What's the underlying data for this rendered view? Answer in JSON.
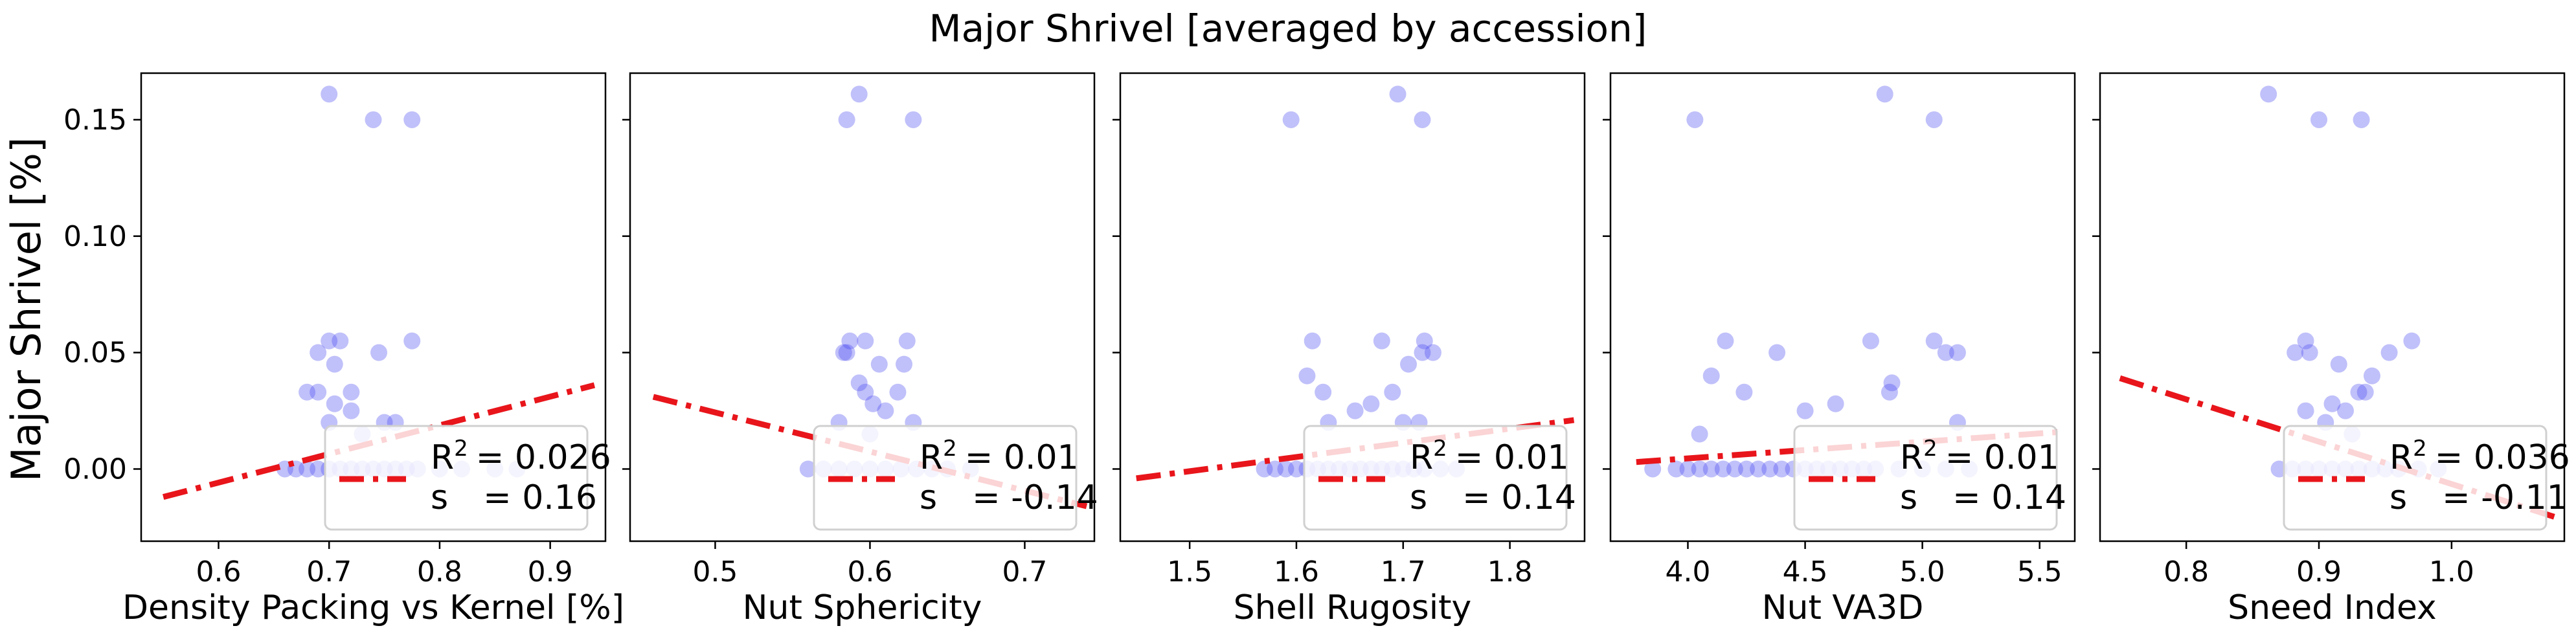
{
  "figure": {
    "title": "Major Shrivel [averaged by accession]",
    "ylabel": "Major Shrivel [%]"
  },
  "colors": {
    "points": "#4a4af0",
    "points_light": "#dcdcfb",
    "fit_line": "#e8151b",
    "axes": "#000000"
  },
  "chart_data": [
    {
      "type": "scatter",
      "xlabel": "Density Packing vs Kernel [%]",
      "ylabel": "Major Shrivel [%]",
      "xlim": [
        0.53,
        0.95
      ],
      "ylim": [
        -0.031,
        0.17
      ],
      "xticks": [
        0.6,
        0.7,
        0.8,
        0.9
      ],
      "xtick_labels": [
        "0.6",
        "0.7",
        "0.8",
        "0.9"
      ],
      "yticks": [
        0.0,
        0.05,
        0.1,
        0.15
      ],
      "ytick_labels": [
        "0.00",
        "0.05",
        "0.10",
        "0.15"
      ],
      "points": [
        {
          "x": 0.7,
          "y": 0.161
        },
        {
          "x": 0.74,
          "y": 0.15
        },
        {
          "x": 0.775,
          "y": 0.15
        },
        {
          "x": 0.69,
          "y": 0.05
        },
        {
          "x": 0.7,
          "y": 0.055
        },
        {
          "x": 0.71,
          "y": 0.055
        },
        {
          "x": 0.745,
          "y": 0.05
        },
        {
          "x": 0.775,
          "y": 0.055
        },
        {
          "x": 0.705,
          "y": 0.045
        },
        {
          "x": 0.68,
          "y": 0.033
        },
        {
          "x": 0.69,
          "y": 0.033
        },
        {
          "x": 0.72,
          "y": 0.033
        },
        {
          "x": 0.705,
          "y": 0.028
        },
        {
          "x": 0.72,
          "y": 0.025
        },
        {
          "x": 0.7,
          "y": 0.02
        },
        {
          "x": 0.75,
          "y": 0.02
        },
        {
          "x": 0.76,
          "y": 0.02
        },
        {
          "x": 0.73,
          "y": 0.015
        },
        {
          "x": 0.66,
          "y": 0.0
        },
        {
          "x": 0.67,
          "y": 0.0
        },
        {
          "x": 0.68,
          "y": 0.0
        },
        {
          "x": 0.69,
          "y": 0.0
        },
        {
          "x": 0.7,
          "y": 0.0
        },
        {
          "x": 0.71,
          "y": 0.0
        },
        {
          "x": 0.72,
          "y": 0.0
        },
        {
          "x": 0.73,
          "y": 0.0
        },
        {
          "x": 0.74,
          "y": 0.0
        },
        {
          "x": 0.75,
          "y": 0.0
        },
        {
          "x": 0.76,
          "y": 0.0
        },
        {
          "x": 0.77,
          "y": 0.0
        },
        {
          "x": 0.78,
          "y": 0.0
        },
        {
          "x": 0.8,
          "y": 0.0
        },
        {
          "x": 0.82,
          "y": 0.0
        },
        {
          "x": 0.85,
          "y": 0.0
        },
        {
          "x": 0.87,
          "y": 0.0
        }
      ],
      "fit_line": {
        "x": [
          0.55,
          0.94
        ],
        "y": [
          -0.012,
          0.036
        ]
      },
      "legend": {
        "r2_label": "R",
        "r2_sup": "2",
        "r2_value": "= 0.026",
        "s_label": "s",
        "s_value": "= 0.16"
      }
    },
    {
      "type": "scatter",
      "xlabel": "Nut Sphericity",
      "ylabel": "",
      "xlim": [
        0.445,
        0.745
      ],
      "ylim": [
        -0.031,
        0.17
      ],
      "xticks": [
        0.5,
        0.6,
        0.7
      ],
      "xtick_labels": [
        "0.5",
        "0.6",
        "0.7"
      ],
      "yticks": [
        0.0,
        0.05,
        0.1,
        0.15
      ],
      "ytick_labels": [
        "",
        "",
        "",
        ""
      ],
      "points": [
        {
          "x": 0.593,
          "y": 0.161
        },
        {
          "x": 0.585,
          "y": 0.15
        },
        {
          "x": 0.628,
          "y": 0.15
        },
        {
          "x": 0.583,
          "y": 0.05
        },
        {
          "x": 0.587,
          "y": 0.055
        },
        {
          "x": 0.597,
          "y": 0.055
        },
        {
          "x": 0.624,
          "y": 0.055
        },
        {
          "x": 0.585,
          "y": 0.05
        },
        {
          "x": 0.606,
          "y": 0.045
        },
        {
          "x": 0.622,
          "y": 0.045
        },
        {
          "x": 0.593,
          "y": 0.037
        },
        {
          "x": 0.597,
          "y": 0.033
        },
        {
          "x": 0.618,
          "y": 0.033
        },
        {
          "x": 0.602,
          "y": 0.028
        },
        {
          "x": 0.61,
          "y": 0.025
        },
        {
          "x": 0.58,
          "y": 0.02
        },
        {
          "x": 0.628,
          "y": 0.02
        },
        {
          "x": 0.6,
          "y": 0.015
        },
        {
          "x": 0.56,
          "y": 0.0
        },
        {
          "x": 0.57,
          "y": 0.0
        },
        {
          "x": 0.58,
          "y": 0.0
        },
        {
          "x": 0.59,
          "y": 0.0
        },
        {
          "x": 0.6,
          "y": 0.0
        },
        {
          "x": 0.61,
          "y": 0.0
        },
        {
          "x": 0.62,
          "y": 0.0
        },
        {
          "x": 0.63,
          "y": 0.0
        },
        {
          "x": 0.64,
          "y": 0.0
        },
        {
          "x": 0.65,
          "y": 0.0
        },
        {
          "x": 0.665,
          "y": 0.0
        }
      ],
      "fit_line": {
        "x": [
          0.46,
          0.74
        ],
        "y": [
          0.031,
          -0.016
        ]
      },
      "legend": {
        "r2_label": "R",
        "r2_sup": "2",
        "r2_value": "= 0.01",
        "s_label": "s",
        "s_value": "= -0.14"
      }
    },
    {
      "type": "scatter",
      "xlabel": "Shell Rugosity",
      "ylabel": "",
      "xlim": [
        1.435,
        1.87
      ],
      "ylim": [
        -0.031,
        0.17
      ],
      "xticks": [
        1.5,
        1.6,
        1.7,
        1.8
      ],
      "xtick_labels": [
        "1.5",
        "1.6",
        "1.7",
        "1.8"
      ],
      "yticks": [
        0.0,
        0.05,
        0.1,
        0.15
      ],
      "ytick_labels": [
        "",
        "",
        "",
        ""
      ],
      "points": [
        {
          "x": 1.695,
          "y": 0.161
        },
        {
          "x": 1.595,
          "y": 0.15
        },
        {
          "x": 1.718,
          "y": 0.15
        },
        {
          "x": 1.615,
          "y": 0.055
        },
        {
          "x": 1.68,
          "y": 0.055
        },
        {
          "x": 1.718,
          "y": 0.05
        },
        {
          "x": 1.728,
          "y": 0.05
        },
        {
          "x": 1.72,
          "y": 0.055
        },
        {
          "x": 1.705,
          "y": 0.045
        },
        {
          "x": 1.61,
          "y": 0.04
        },
        {
          "x": 1.625,
          "y": 0.033
        },
        {
          "x": 1.69,
          "y": 0.033
        },
        {
          "x": 1.67,
          "y": 0.028
        },
        {
          "x": 1.655,
          "y": 0.025
        },
        {
          "x": 1.63,
          "y": 0.02
        },
        {
          "x": 1.7,
          "y": 0.02
        },
        {
          "x": 1.715,
          "y": 0.02
        },
        {
          "x": 1.57,
          "y": 0.0
        },
        {
          "x": 1.58,
          "y": 0.0
        },
        {
          "x": 1.59,
          "y": 0.0
        },
        {
          "x": 1.6,
          "y": 0.0
        },
        {
          "x": 1.61,
          "y": 0.0
        },
        {
          "x": 1.62,
          "y": 0.0
        },
        {
          "x": 1.63,
          "y": 0.0
        },
        {
          "x": 1.64,
          "y": 0.0
        },
        {
          "x": 1.65,
          "y": 0.0
        },
        {
          "x": 1.66,
          "y": 0.0
        },
        {
          "x": 1.67,
          "y": 0.0
        },
        {
          "x": 1.68,
          "y": 0.0
        },
        {
          "x": 1.69,
          "y": 0.0
        },
        {
          "x": 1.7,
          "y": 0.0
        },
        {
          "x": 1.71,
          "y": 0.0
        },
        {
          "x": 1.72,
          "y": 0.0
        },
        {
          "x": 1.735,
          "y": 0.0
        },
        {
          "x": 1.75,
          "y": 0.0
        }
      ],
      "fit_line": {
        "x": [
          1.45,
          1.86
        ],
        "y": [
          -0.004,
          0.021
        ]
      },
      "legend": {
        "r2_label": "R",
        "r2_sup": "2",
        "r2_value": "= 0.01",
        "s_label": "s",
        "s_value": "= 0.14"
      }
    },
    {
      "type": "scatter",
      "xlabel": "Nut VA3D",
      "ylabel": "",
      "xlim": [
        3.67,
        5.65
      ],
      "ylim": [
        -0.031,
        0.17
      ],
      "xticks": [
        4.0,
        4.5,
        5.0,
        5.5
      ],
      "xtick_labels": [
        "4.0",
        "4.5",
        "5.0",
        "5.5"
      ],
      "yticks": [
        0.0,
        0.05,
        0.1,
        0.15
      ],
      "ytick_labels": [
        "",
        "",
        "",
        ""
      ],
      "points": [
        {
          "x": 4.84,
          "y": 0.161
        },
        {
          "x": 4.03,
          "y": 0.15
        },
        {
          "x": 5.05,
          "y": 0.15
        },
        {
          "x": 4.16,
          "y": 0.055
        },
        {
          "x": 4.78,
          "y": 0.055
        },
        {
          "x": 5.05,
          "y": 0.055
        },
        {
          "x": 4.38,
          "y": 0.05
        },
        {
          "x": 5.1,
          "y": 0.05
        },
        {
          "x": 5.15,
          "y": 0.05
        },
        {
          "x": 4.1,
          "y": 0.04
        },
        {
          "x": 4.87,
          "y": 0.037
        },
        {
          "x": 4.24,
          "y": 0.033
        },
        {
          "x": 4.86,
          "y": 0.033
        },
        {
          "x": 4.63,
          "y": 0.028
        },
        {
          "x": 4.5,
          "y": 0.025
        },
        {
          "x": 5.15,
          "y": 0.02
        },
        {
          "x": 4.05,
          "y": 0.015
        },
        {
          "x": 3.85,
          "y": 0.0
        },
        {
          "x": 3.95,
          "y": 0.0
        },
        {
          "x": 4.0,
          "y": 0.0
        },
        {
          "x": 4.05,
          "y": 0.0
        },
        {
          "x": 4.1,
          "y": 0.0
        },
        {
          "x": 4.15,
          "y": 0.0
        },
        {
          "x": 4.2,
          "y": 0.0
        },
        {
          "x": 4.25,
          "y": 0.0
        },
        {
          "x": 4.3,
          "y": 0.0
        },
        {
          "x": 4.35,
          "y": 0.0
        },
        {
          "x": 4.4,
          "y": 0.0
        },
        {
          "x": 4.45,
          "y": 0.0
        },
        {
          "x": 4.5,
          "y": 0.0
        },
        {
          "x": 4.55,
          "y": 0.0
        },
        {
          "x": 4.6,
          "y": 0.0
        },
        {
          "x": 4.65,
          "y": 0.0
        },
        {
          "x": 4.7,
          "y": 0.0
        },
        {
          "x": 4.75,
          "y": 0.0
        },
        {
          "x": 4.8,
          "y": 0.0
        },
        {
          "x": 4.9,
          "y": 0.0
        },
        {
          "x": 5.0,
          "y": 0.0
        },
        {
          "x": 5.1,
          "y": 0.0
        },
        {
          "x": 5.2,
          "y": 0.0
        }
      ],
      "fit_line": {
        "x": [
          3.78,
          5.6
        ],
        "y": [
          0.003,
          0.016
        ]
      },
      "legend": {
        "r2_label": "R",
        "r2_sup": "2",
        "r2_value": "= 0.01",
        "s_label": "s",
        "s_value": "= 0.14"
      }
    },
    {
      "type": "scatter",
      "xlabel": "Sneed Index",
      "ylabel": "",
      "xlim": [
        0.735,
        1.085
      ],
      "ylim": [
        -0.031,
        0.17
      ],
      "xticks": [
        0.8,
        0.9,
        1.0
      ],
      "xtick_labels": [
        "0.8",
        "0.9",
        "1.0"
      ],
      "yticks": [
        0.0,
        0.05,
        0.1,
        0.15
      ],
      "ytick_labels": [
        "",
        "",
        "",
        ""
      ],
      "points": [
        {
          "x": 0.862,
          "y": 0.161
        },
        {
          "x": 0.9,
          "y": 0.15
        },
        {
          "x": 0.932,
          "y": 0.15
        },
        {
          "x": 0.882,
          "y": 0.05
        },
        {
          "x": 0.89,
          "y": 0.055
        },
        {
          "x": 0.893,
          "y": 0.05
        },
        {
          "x": 0.97,
          "y": 0.055
        },
        {
          "x": 0.953,
          "y": 0.05
        },
        {
          "x": 0.915,
          "y": 0.045
        },
        {
          "x": 0.94,
          "y": 0.04
        },
        {
          "x": 0.93,
          "y": 0.033
        },
        {
          "x": 0.935,
          "y": 0.033
        },
        {
          "x": 0.91,
          "y": 0.028
        },
        {
          "x": 0.89,
          "y": 0.025
        },
        {
          "x": 0.92,
          "y": 0.025
        },
        {
          "x": 0.905,
          "y": 0.02
        },
        {
          "x": 0.925,
          "y": 0.015
        },
        {
          "x": 0.87,
          "y": 0.0
        },
        {
          "x": 0.88,
          "y": 0.0
        },
        {
          "x": 0.89,
          "y": 0.0
        },
        {
          "x": 0.9,
          "y": 0.0
        },
        {
          "x": 0.91,
          "y": 0.0
        },
        {
          "x": 0.92,
          "y": 0.0
        },
        {
          "x": 0.93,
          "y": 0.0
        },
        {
          "x": 0.94,
          "y": 0.0
        },
        {
          "x": 0.95,
          "y": 0.0
        },
        {
          "x": 0.96,
          "y": 0.0
        },
        {
          "x": 0.975,
          "y": 0.0
        },
        {
          "x": 0.99,
          "y": 0.0
        }
      ],
      "fit_line": {
        "x": [
          0.75,
          1.08
        ],
        "y": [
          0.039,
          -0.021
        ]
      },
      "legend": {
        "r2_label": "R",
        "r2_sup": "2",
        "r2_value": "= 0.036",
        "s_label": "s",
        "s_value": "= -0.11"
      }
    }
  ]
}
